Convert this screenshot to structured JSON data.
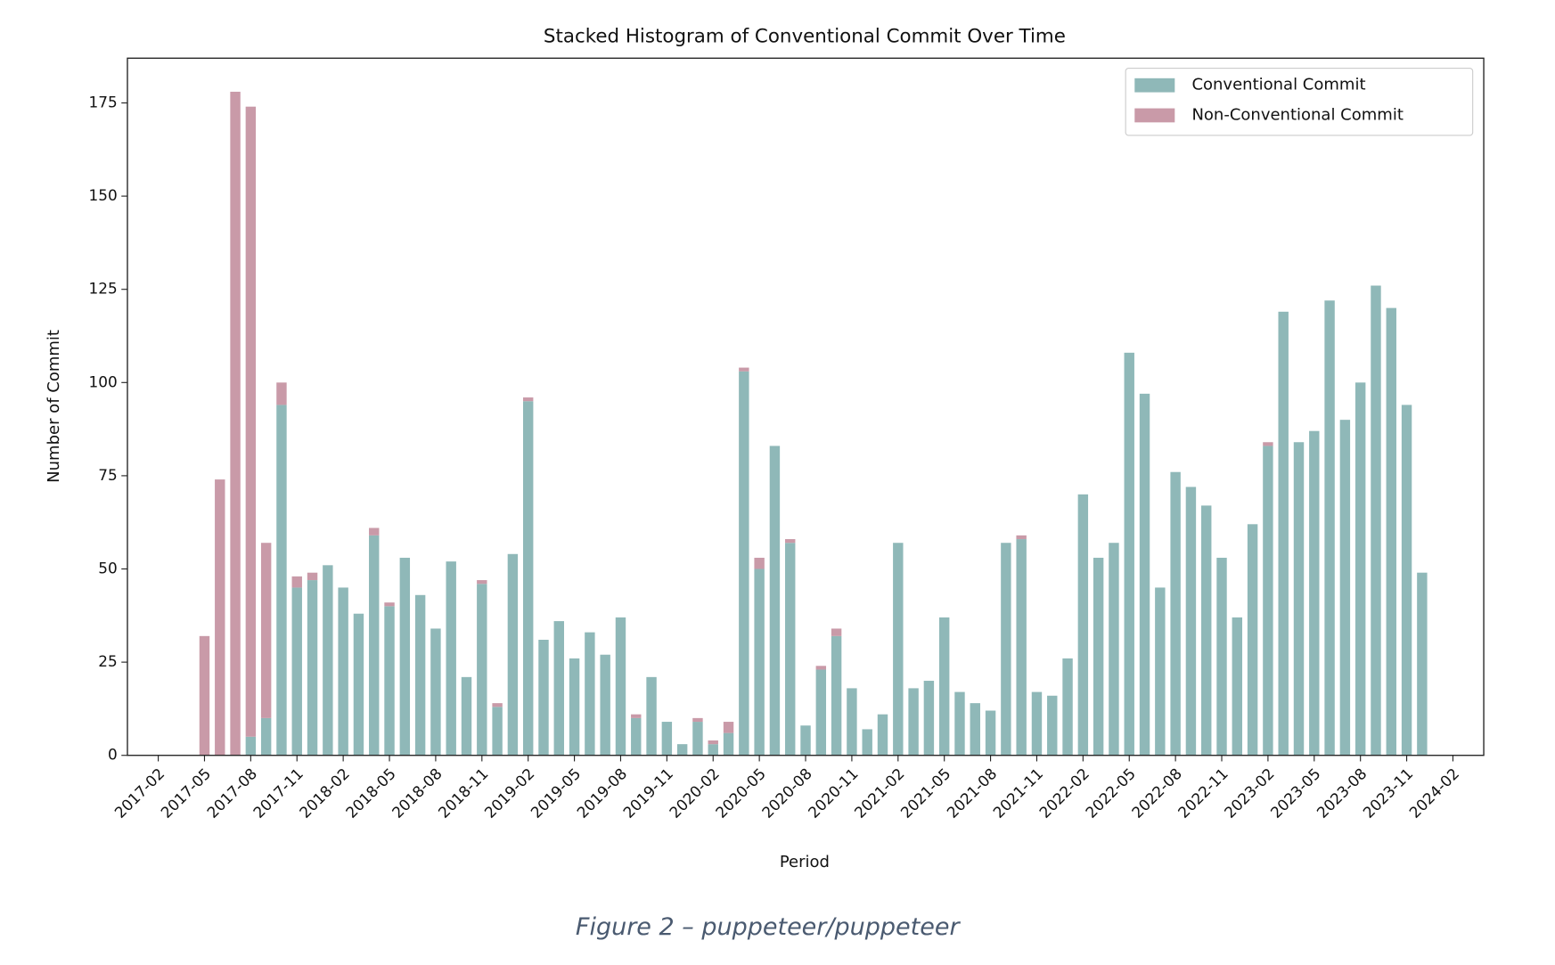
{
  "chart_data": {
    "type": "bar",
    "stacked": true,
    "title": "Stacked Histogram of Conventional Commit Over Time",
    "xlabel": "Period",
    "ylabel": "Number of Commit",
    "caption": "Figure 2 – puppeteer/puppeteer",
    "x": [
      "2017-05",
      "2017-06",
      "2017-07",
      "2017-08",
      "2017-09",
      "2017-10",
      "2017-11",
      "2017-12",
      "2018-01",
      "2018-02",
      "2018-03",
      "2018-04",
      "2018-05",
      "2018-06",
      "2018-07",
      "2018-08",
      "2018-09",
      "2018-10",
      "2018-11",
      "2018-12",
      "2019-01",
      "2019-02",
      "2019-03",
      "2019-04",
      "2019-05",
      "2019-06",
      "2019-07",
      "2019-08",
      "2019-09",
      "2019-10",
      "2019-11",
      "2019-12",
      "2020-01",
      "2020-02",
      "2020-03",
      "2020-04",
      "2020-05",
      "2020-06",
      "2020-07",
      "2020-08",
      "2020-09",
      "2020-10",
      "2020-11",
      "2020-12",
      "2021-01",
      "2021-02",
      "2021-03",
      "2021-04",
      "2021-05",
      "2021-06",
      "2021-07",
      "2021-08",
      "2021-09",
      "2021-10",
      "2021-11",
      "2021-12",
      "2022-01",
      "2022-02",
      "2022-03",
      "2022-04",
      "2022-05",
      "2022-06",
      "2022-07",
      "2022-08",
      "2022-09",
      "2022-10",
      "2022-11",
      "2022-12",
      "2023-01",
      "2023-02",
      "2023-03",
      "2023-04",
      "2023-05",
      "2023-06",
      "2023-07",
      "2023-08",
      "2023-09",
      "2023-10",
      "2023-11",
      "2023-12"
    ],
    "series": [
      {
        "name": "Conventional Commit",
        "color": "#8fb8b8",
        "values": [
          0,
          0,
          0,
          5,
          10,
          94,
          45,
          47,
          51,
          45,
          38,
          59,
          40,
          53,
          43,
          34,
          52,
          21,
          46,
          13,
          54,
          95,
          31,
          36,
          26,
          33,
          27,
          37,
          10,
          21,
          9,
          3,
          9,
          3,
          6,
          103,
          50,
          83,
          57,
          8,
          23,
          32,
          18,
          7,
          11,
          57,
          18,
          20,
          37,
          17,
          14,
          12,
          57,
          58,
          17,
          16,
          26,
          70,
          53,
          57,
          108,
          97,
          45,
          76,
          72,
          67,
          53,
          37,
          62,
          83,
          119,
          84,
          87,
          122,
          90,
          100,
          126,
          120,
          94,
          49
        ]
      },
      {
        "name": "Non-Conventional Commit",
        "color": "#c99aa8",
        "values": [
          32,
          74,
          178,
          169,
          47,
          6,
          3,
          2,
          0,
          0,
          0,
          2,
          1,
          0,
          0,
          0,
          0,
          0,
          1,
          1,
          0,
          1,
          0,
          0,
          0,
          0,
          0,
          0,
          1,
          0,
          0,
          0,
          1,
          1,
          3,
          1,
          3,
          0,
          1,
          0,
          1,
          2,
          0,
          0,
          0,
          0,
          0,
          0,
          0,
          0,
          0,
          0,
          0,
          1,
          0,
          0,
          0,
          0,
          0,
          0,
          0,
          0,
          0,
          0,
          0,
          0,
          0,
          0,
          0,
          1,
          0,
          0,
          0,
          0,
          0,
          0,
          0,
          0,
          0,
          0
        ]
      }
    ],
    "xlim": [
      "2016-12",
      "2024-04"
    ],
    "xticks": [
      "2017-02",
      "2017-05",
      "2017-08",
      "2017-11",
      "2018-02",
      "2018-05",
      "2018-08",
      "2018-11",
      "2019-02",
      "2019-05",
      "2019-08",
      "2019-11",
      "2020-02",
      "2020-05",
      "2020-08",
      "2020-11",
      "2021-02",
      "2021-05",
      "2021-08",
      "2021-11",
      "2022-02",
      "2022-05",
      "2022-08",
      "2022-11",
      "2023-02",
      "2023-05",
      "2023-08",
      "2023-11",
      "2024-02"
    ],
    "ylim": [
      0,
      187
    ],
    "yticks": [
      0,
      25,
      50,
      75,
      100,
      125,
      150,
      175
    ],
    "legend": "upper right"
  }
}
